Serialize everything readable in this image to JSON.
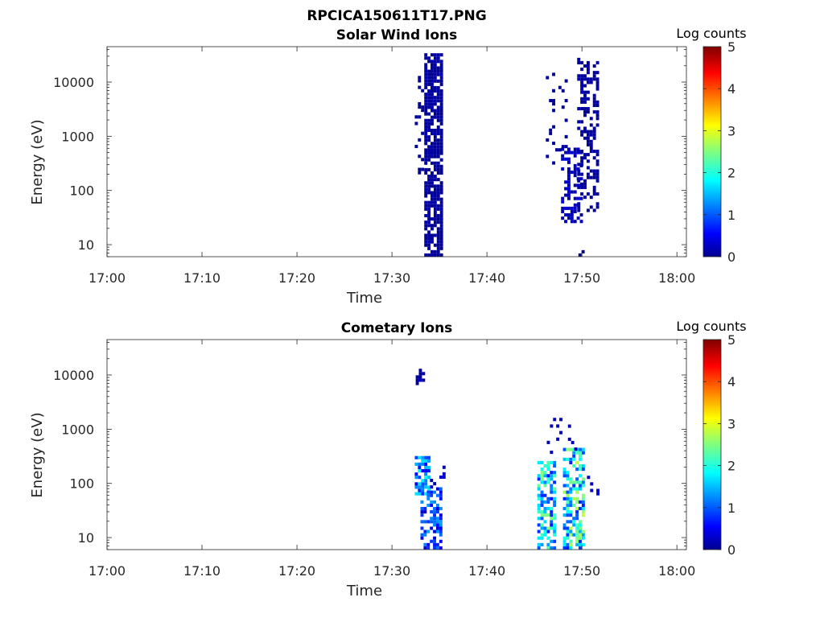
{
  "figure": {
    "title": "RPCICA150611T17.PNG"
  },
  "chart_data": [
    {
      "type": "heatmap",
      "title": "Solar Wind Ions",
      "xlabel": "Time",
      "ylabel": "Energy (eV)",
      "x_ticks": [
        "17:00",
        "17:10",
        "17:20",
        "17:30",
        "17:40",
        "17:50",
        "18:00"
      ],
      "xlim_minutes": [
        0,
        61
      ],
      "y_ticks": [
        {
          "value": 10,
          "label": "10"
        },
        {
          "value": 100,
          "label": "100"
        },
        {
          "value": 1000,
          "label": "1000"
        },
        {
          "value": 10000,
          "label": "10000"
        }
      ],
      "ylim": [
        6,
        45000
      ],
      "y_scale": "log",
      "colorbar": {
        "label": "Log counts",
        "range": [
          0,
          5
        ],
        "ticks": [
          "0",
          "1",
          "2",
          "3",
          "4",
          "5"
        ],
        "colormap": "jet"
      },
      "clusters": [
        {
          "t_start": 33.4,
          "t_end": 35.3,
          "e_min": 6,
          "e_max": 30000,
          "level": 0.15,
          "density": 0.75
        },
        {
          "t_start": 32.4,
          "t_end": 33.2,
          "e_min": 150,
          "e_max": 12000,
          "level": 0.1,
          "density": 0.12
        },
        {
          "t_start": 46.2,
          "t_end": 48.2,
          "e_min": 300,
          "e_max": 14000,
          "level": 0.1,
          "density": 0.15
        },
        {
          "t_start": 47.8,
          "t_end": 50.0,
          "e_min": 25,
          "e_max": 600,
          "level": 0.3,
          "density": 0.4
        },
        {
          "t_start": 49.5,
          "t_end": 51.5,
          "e_min": 40,
          "e_max": 25000,
          "level": 0.15,
          "density": 0.45
        },
        {
          "t_start": 49.3,
          "t_end": 50.2,
          "e_min": 6,
          "e_max": 12,
          "level": 0.05,
          "density": 0.4
        }
      ]
    },
    {
      "type": "heatmap",
      "title": "Cometary Ions",
      "xlabel": "Time",
      "ylabel": "Energy (eV)",
      "x_ticks": [
        "17:00",
        "17:10",
        "17:20",
        "17:30",
        "17:40",
        "17:50",
        "18:00"
      ],
      "xlim_minutes": [
        0,
        61
      ],
      "y_ticks": [
        {
          "value": 10,
          "label": "10"
        },
        {
          "value": 100,
          "label": "100"
        },
        {
          "value": 1000,
          "label": "1000"
        },
        {
          "value": 10000,
          "label": "10000"
        }
      ],
      "ylim": [
        6,
        45000
      ],
      "y_scale": "log",
      "colorbar": {
        "label": "Log counts",
        "range": [
          0,
          5
        ],
        "ticks": [
          "0",
          "1",
          "2",
          "3",
          "4",
          "5"
        ],
        "colormap": "jet"
      },
      "clusters": [
        {
          "t_start": 32.5,
          "t_end": 33.3,
          "e_min": 6500,
          "e_max": 12000,
          "level": 0.2,
          "density": 0.6
        },
        {
          "t_start": 32.4,
          "t_end": 34.0,
          "e_min": 60,
          "e_max": 280,
          "level": 1.2,
          "density": 0.7
        },
        {
          "t_start": 33.0,
          "t_end": 35.0,
          "e_min": 6,
          "e_max": 80,
          "level": 0.9,
          "density": 0.6
        },
        {
          "t_start": 34.0,
          "t_end": 35.5,
          "e_min": 80,
          "e_max": 200,
          "level": 0.3,
          "density": 0.2
        },
        {
          "t_start": 45.3,
          "t_end": 47.2,
          "e_min": 6,
          "e_max": 250,
          "level": 1.6,
          "density": 0.55
        },
        {
          "t_start": 46.3,
          "t_end": 47.8,
          "e_min": 200,
          "e_max": 1500,
          "level": 0.2,
          "density": 0.15
        },
        {
          "t_start": 48.0,
          "t_end": 50.2,
          "e_min": 6,
          "e_max": 400,
          "level": 1.8,
          "density": 0.65
        },
        {
          "t_start": 48.2,
          "t_end": 49.5,
          "e_min": 400,
          "e_max": 1200,
          "level": 0.3,
          "density": 0.2
        },
        {
          "t_start": 50.2,
          "t_end": 51.8,
          "e_min": 60,
          "e_max": 200,
          "level": 0.3,
          "density": 0.2
        }
      ]
    }
  ]
}
